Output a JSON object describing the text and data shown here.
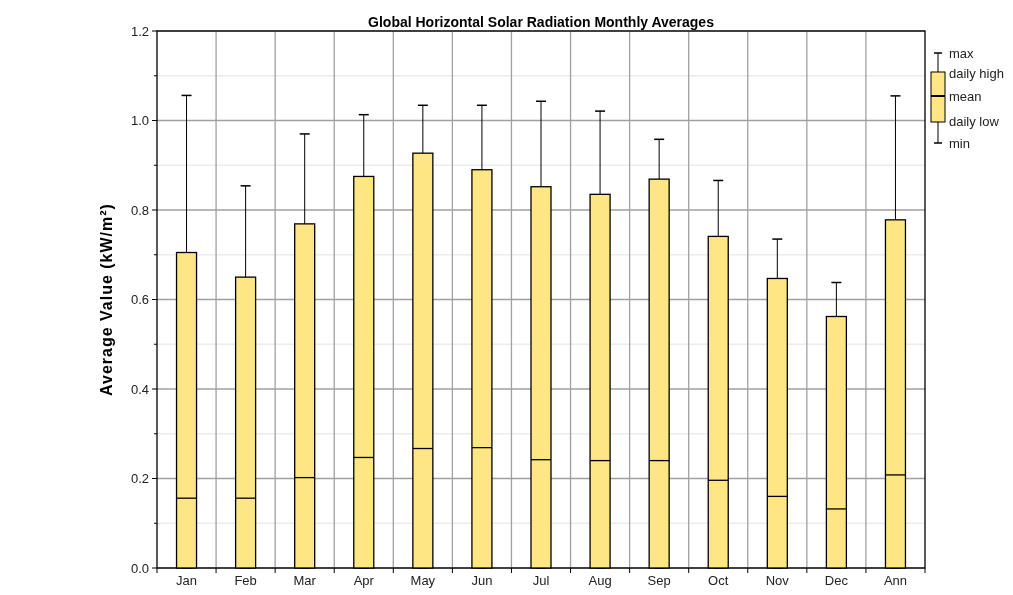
{
  "chart_data": {
    "type": "box",
    "title": "Global Horizontal Solar Radiation Monthly Averages",
    "ylabel": "Average Value (kW/m²)",
    "categories": [
      "Jan",
      "Feb",
      "Mar",
      "Apr",
      "May",
      "Jun",
      "Jul",
      "Aug",
      "Sep",
      "Oct",
      "Nov",
      "Dec",
      "Ann"
    ],
    "series": [
      {
        "color": "#fde683",
        "boxes": [
          {
            "low": 0,
            "q1": 0,
            "median": 0.156,
            "q3": 0.705,
            "high": 1.056
          },
          {
            "low": 0,
            "q1": 0,
            "median": 0.156,
            "q3": 0.65,
            "high": 0.854
          },
          {
            "low": 0,
            "q1": 0,
            "median": 0.202,
            "q3": 0.769,
            "high": 0.97
          },
          {
            "low": 0,
            "q1": 0,
            "median": 0.247,
            "q3": 0.875,
            "high": 1.013
          },
          {
            "low": 0,
            "q1": 0,
            "median": 0.267,
            "q3": 0.927,
            "high": 1.034
          },
          {
            "low": 0,
            "q1": 0,
            "median": 0.269,
            "q3": 0.89,
            "high": 1.034
          },
          {
            "low": 0,
            "q1": 0,
            "median": 0.242,
            "q3": 0.852,
            "high": 1.043
          },
          {
            "low": 0,
            "q1": 0,
            "median": 0.24,
            "q3": 0.835,
            "high": 1.021
          },
          {
            "low": 0,
            "q1": 0,
            "median": 0.24,
            "q3": 0.869,
            "high": 0.958
          },
          {
            "low": 0,
            "q1": 0,
            "median": 0.196,
            "q3": 0.741,
            "high": 0.866
          },
          {
            "low": 0,
            "q1": 0,
            "median": 0.16,
            "q3": 0.647,
            "high": 0.735
          },
          {
            "low": 0,
            "q1": 0,
            "median": 0.132,
            "q3": 0.562,
            "high": 0.638
          },
          {
            "low": 0,
            "q1": 0,
            "median": 0.208,
            "q3": 0.778,
            "high": 1.055
          }
        ]
      }
    ],
    "ylim": [
      0,
      1.2
    ],
    "yticks": [
      {
        "value": 0,
        "label": "0.0"
      },
      {
        "value": 0.1,
        "label": null
      },
      {
        "value": 0.2,
        "label": "0.2"
      },
      {
        "value": 0.3,
        "label": null
      },
      {
        "value": 0.4,
        "label": "0.4"
      },
      {
        "value": 0.5,
        "label": null
      },
      {
        "value": 0.6,
        "label": "0.6"
      },
      {
        "value": 0.7,
        "label": null
      },
      {
        "value": 0.8,
        "label": "0.8"
      },
      {
        "value": 0.9,
        "label": null
      },
      {
        "value": 1.0,
        "label": "1.0"
      },
      {
        "value": 1.1,
        "label": null
      },
      {
        "value": 1.2,
        "label": "1.2"
      }
    ],
    "grid": true,
    "annotations": [
      "max",
      "daily high",
      "mean",
      "daily low",
      "min"
    ]
  }
}
